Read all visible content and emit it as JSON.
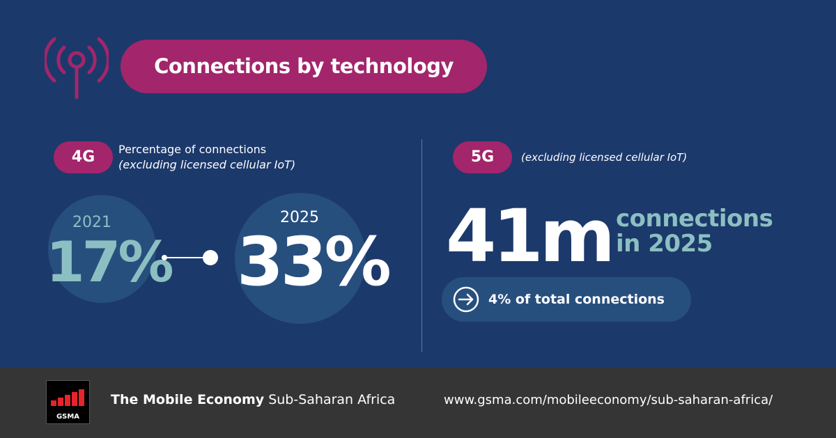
{
  "header": {
    "title": "Connections by technology",
    "icon": "antenna-signal-icon",
    "accent_color": "#a3256b"
  },
  "four_g": {
    "badge": "4G",
    "desc_line1": "Percentage of connections",
    "desc_line2": "(excluding licensed cellular IoT)",
    "from_year": "2021",
    "from_value": "17%",
    "to_year": "2025",
    "to_value": "33%"
  },
  "five_g": {
    "badge": "5G",
    "desc": "(excluding licensed cellular IoT)",
    "big_value": "41m",
    "label_line1": "connections",
    "label_line2": "in 2025",
    "share_text": "4% of total connections",
    "share_icon": "arrow-right-circle-icon"
  },
  "footer": {
    "logo_text": "GSMA",
    "report_bold": "The Mobile Economy",
    "report_rest": "Sub-Saharan Africa",
    "url": "www.gsma.com/mobileeconomy/sub-saharan-africa/"
  },
  "colors": {
    "background": "#1c396b",
    "teal": "#8cbfc1",
    "circle": "#274f7e",
    "footer": "#353535"
  }
}
